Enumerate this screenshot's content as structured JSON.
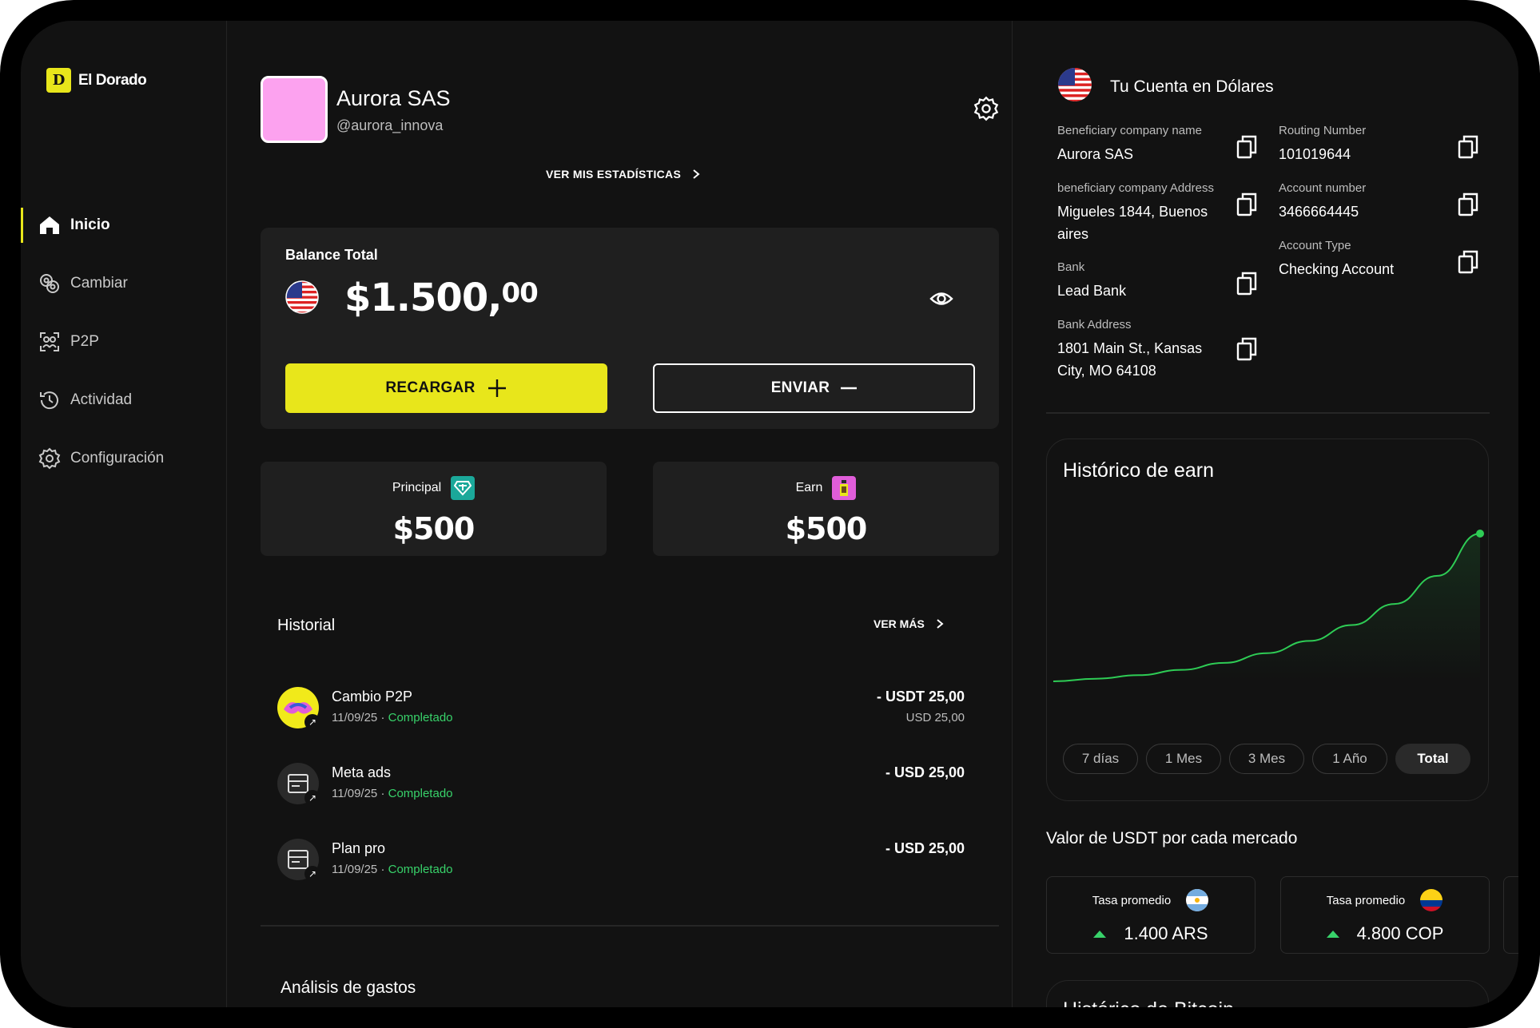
{
  "brand": {
    "name": "El Dorado",
    "accent": "#e8e61b"
  },
  "nav": [
    {
      "label": "Inicio",
      "icon": "home-icon",
      "active": true
    },
    {
      "label": "Cambiar",
      "icon": "exchange-icon",
      "active": false
    },
    {
      "label": "P2P",
      "icon": "p2p-icon",
      "active": false
    },
    {
      "label": "Actividad",
      "icon": "history-icon",
      "active": false
    },
    {
      "label": "Configuración",
      "icon": "gear-icon",
      "active": false
    }
  ],
  "profile": {
    "name": "Aurora SAS",
    "handle": "@aurora_innova",
    "stats_link": "VER MIS ESTADÍSTICAS",
    "avatar_color": "#fca2ef"
  },
  "balance": {
    "label": "Balance Total",
    "amount_main": "$1.500,",
    "amount_cents": "00",
    "recargar": "RECARGAR",
    "enviar": "ENVIAR"
  },
  "wallets": [
    {
      "label": "Principal",
      "value": "$500",
      "icon": "tether-icon",
      "color": "#1ba89a"
    },
    {
      "label": "Earn",
      "value": "$500",
      "icon": "earn-icon",
      "color": "#e05dd9"
    }
  ],
  "history": {
    "title": "Historial",
    "more": "VER MÁS",
    "items": [
      {
        "name": "Cambio P2P",
        "date": "11/09/25",
        "status": "Completado",
        "amount": "- USDT 25,00",
        "sub": "USD 25,00"
      },
      {
        "name": "Meta ads",
        "date": "11/09/25",
        "status": "Completado",
        "amount": "- USD 25,00",
        "sub": ""
      },
      {
        "name": "Plan pro",
        "date": "11/09/25",
        "status": "Completado",
        "amount": "- USD 25,00",
        "sub": ""
      }
    ]
  },
  "analysis_title": "Análisis de gastos",
  "account": {
    "title": "Tu Cuenta en Dólares",
    "fields": [
      {
        "label": "Beneficiary company name",
        "value": "Aurora SAS"
      },
      {
        "label": "beneficiary company Address",
        "value": "Migueles 1844, Buenos aires"
      },
      {
        "label": "Bank",
        "value": "Lead Bank"
      },
      {
        "label": "Bank Address",
        "value": "1801 Main St., Kansas City, MO 64108"
      },
      {
        "label": "Routing Number",
        "value": "101019644"
      },
      {
        "label": "Account number",
        "value": "3466664445"
      },
      {
        "label": "Account Type",
        "value": "Checking Account"
      }
    ]
  },
  "earn_chart": {
    "title": "Histórico de earn",
    "ranges": [
      "7 días",
      "1 Mes",
      "3 Mes",
      "1 Año",
      "Total"
    ],
    "active_range": "Total",
    "line_color": "#2ecc55"
  },
  "chart_data": {
    "type": "line",
    "title": "Histórico de earn",
    "x": [
      0,
      1,
      2,
      3,
      4,
      5,
      6,
      7,
      8,
      9,
      10
    ],
    "values": [
      0,
      1.5,
      3.5,
      6.5,
      10.5,
      16,
      23,
      32,
      44,
      60,
      84
    ],
    "xlabel": "",
    "ylabel": "",
    "grid": false
  },
  "usdt": {
    "title": "Valor de USDT por cada mercado",
    "rates": [
      {
        "label": "Tasa promedio",
        "value": "1.400 ARS",
        "flag": "argentina-flag-icon"
      },
      {
        "label": "Tasa promedio",
        "value": "4.800 COP",
        "flag": "colombia-flag-icon"
      }
    ]
  },
  "next_card_title": "Histórico de Bitcoin"
}
